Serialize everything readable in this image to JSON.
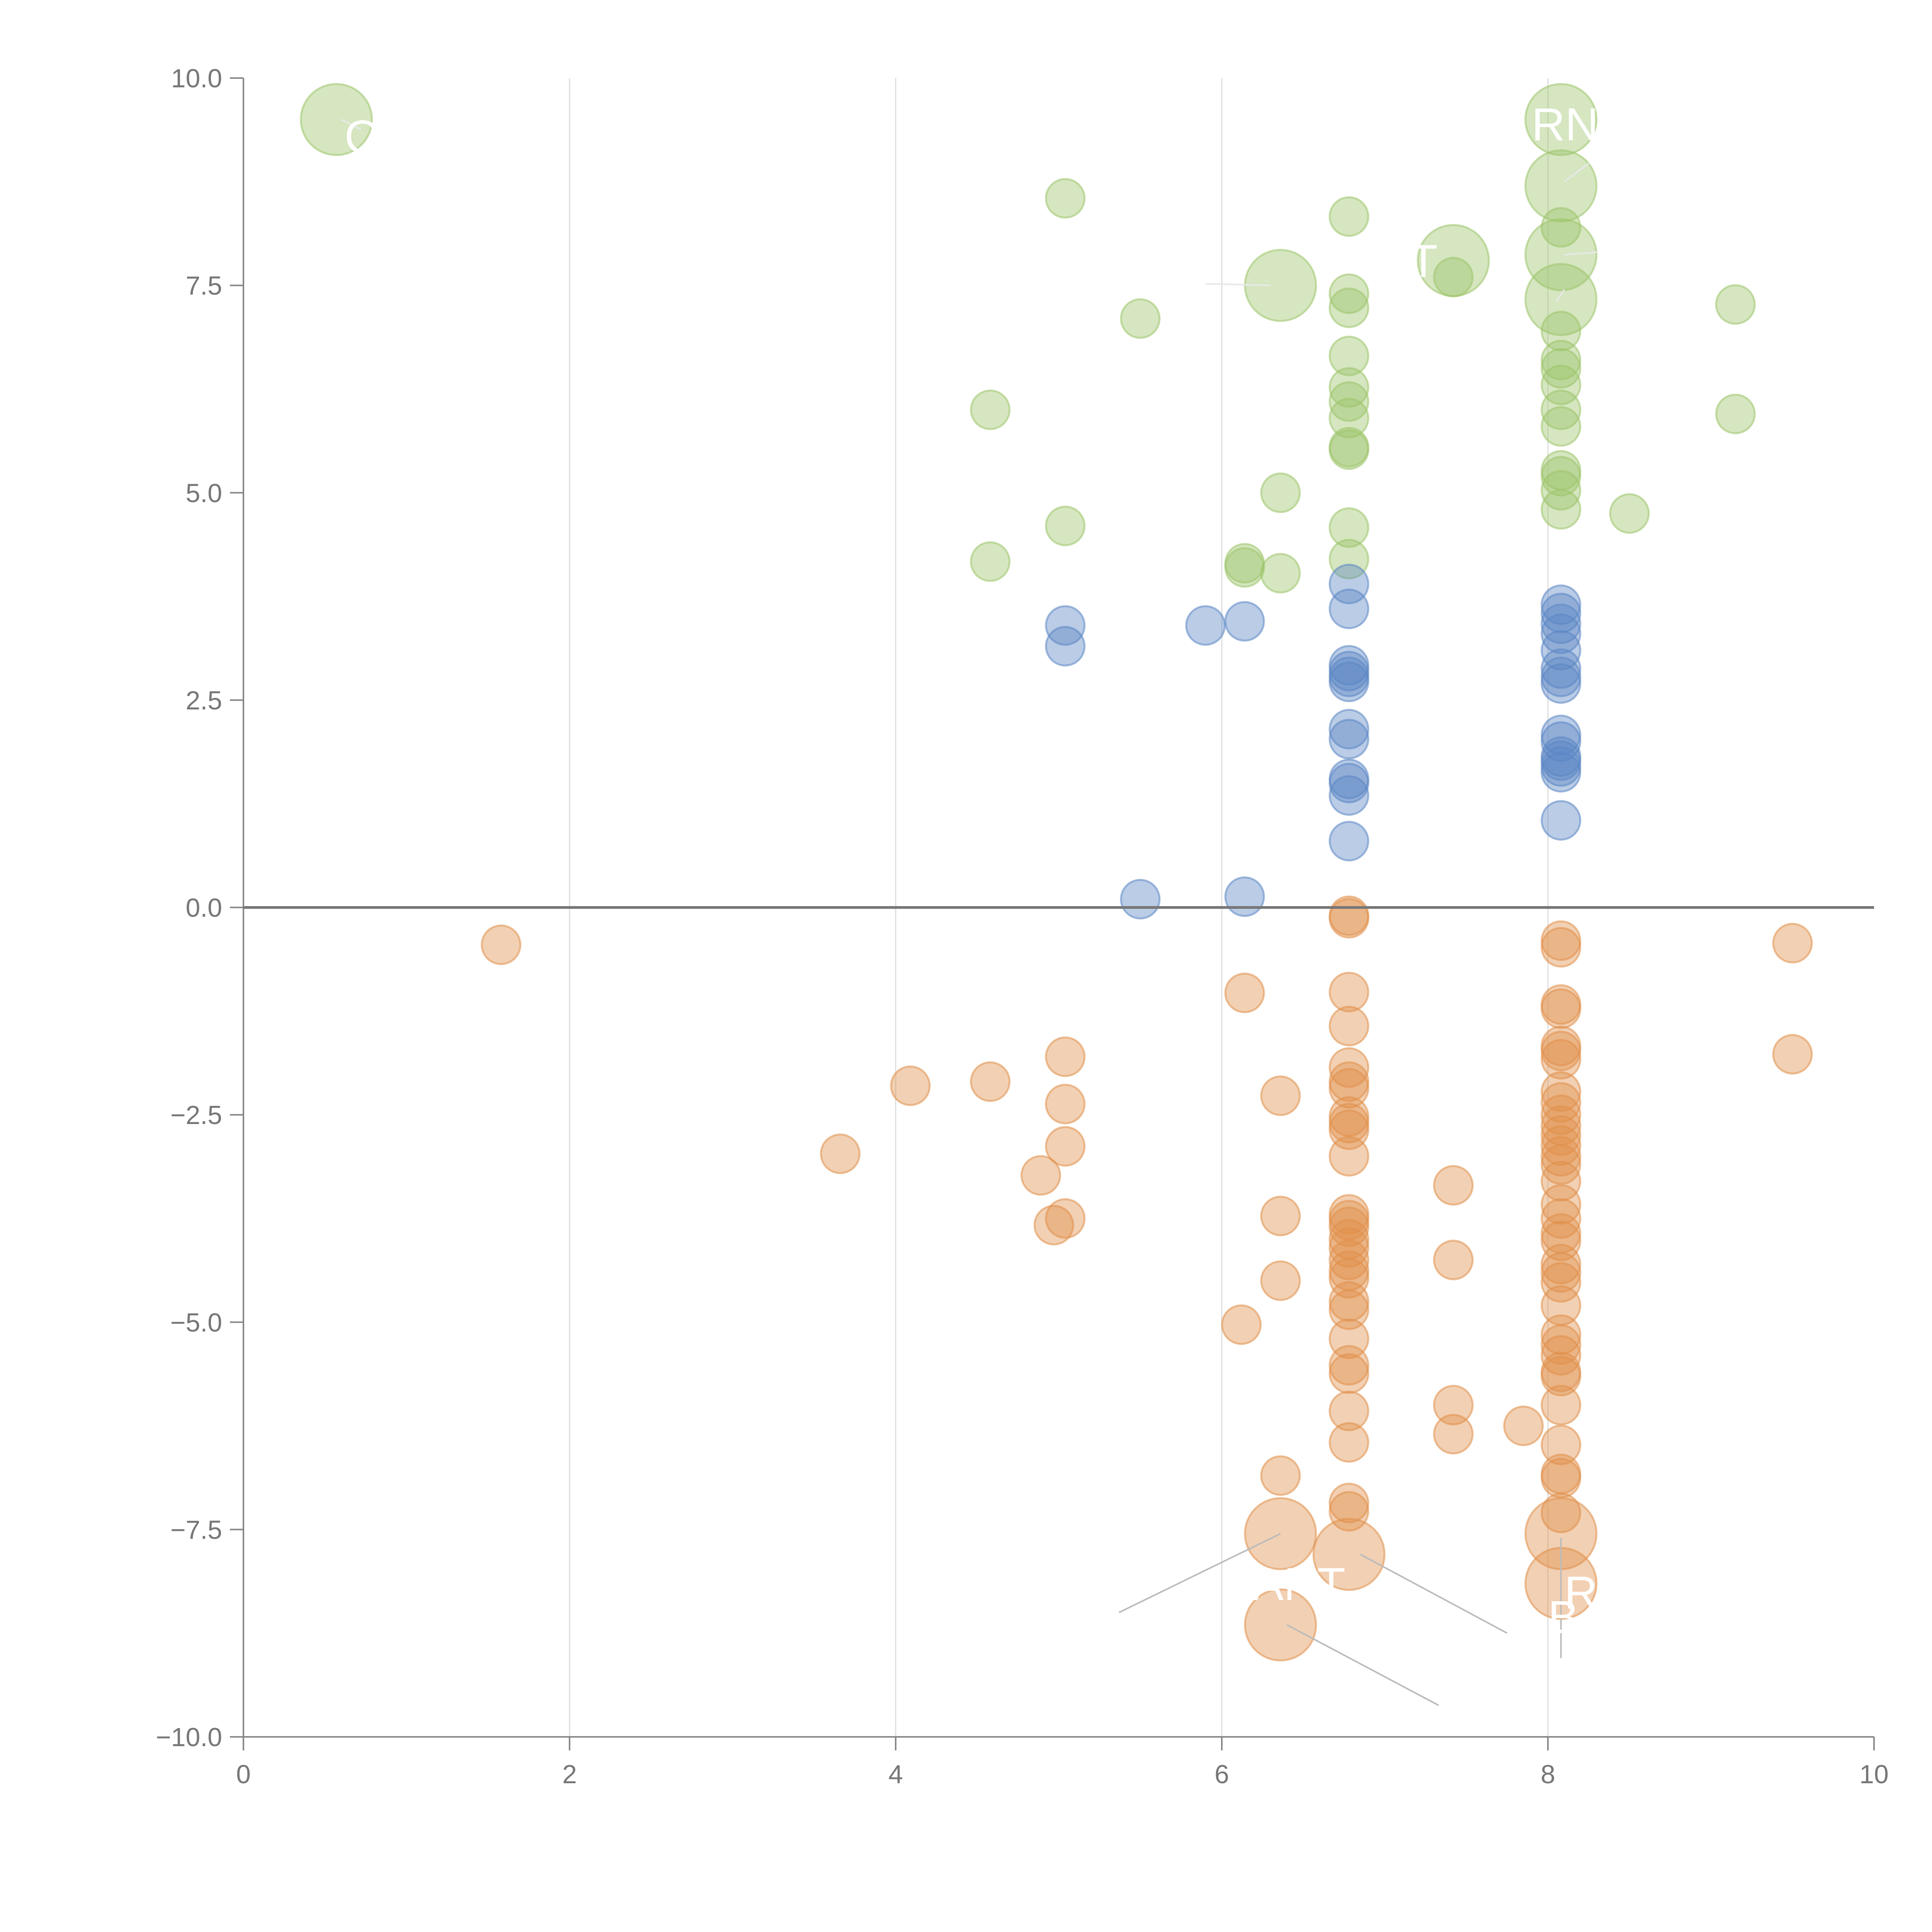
{
  "chart_data": {
    "type": "scatter",
    "title": "",
    "xlabel": "",
    "ylabel": "",
    "xlim": [
      0,
      10
    ],
    "ylim": [
      -10,
      10
    ],
    "x_ticks": [
      "0",
      "2",
      "4",
      "6",
      "8",
      "10"
    ],
    "y_ticks": [
      "10.0",
      "7.5",
      "5.0",
      "2.5",
      "0.0",
      "−2.5",
      "−5.0",
      "−7.5",
      "−10.0"
    ],
    "x_grid": [
      2,
      4,
      6,
      8
    ],
    "colors": {
      "green": "#9cc46a",
      "blue": "#5b86c4",
      "orange": "#e0904a"
    },
    "series": [
      {
        "name": "green",
        "color": "#9cc46a",
        "points": [
          [
            0.57,
            9.5,
            2
          ],
          [
            5.04,
            8.55,
            1
          ],
          [
            5.5,
            7.1,
            1
          ],
          [
            4.58,
            6.0,
            1
          ],
          [
            5.04,
            4.6,
            1
          ],
          [
            4.58,
            4.17,
            1
          ],
          [
            6.14,
            4.15,
            1
          ],
          [
            6.14,
            4.1,
            1
          ],
          [
            6.36,
            4.03,
            1
          ],
          [
            6.36,
            5.0,
            1
          ],
          [
            6.36,
            7.5,
            2
          ],
          [
            6.78,
            8.33,
            1
          ],
          [
            6.78,
            7.4,
            1
          ],
          [
            6.78,
            7.23,
            1
          ],
          [
            6.78,
            6.65,
            1
          ],
          [
            6.78,
            6.27,
            1
          ],
          [
            6.78,
            6.1,
            1
          ],
          [
            6.78,
            5.9,
            1
          ],
          [
            6.78,
            5.55,
            1
          ],
          [
            6.78,
            5.52,
            1
          ],
          [
            6.78,
            4.58,
            1
          ],
          [
            6.78,
            4.2,
            1
          ],
          [
            7.42,
            7.8,
            2
          ],
          [
            7.42,
            7.6,
            1
          ],
          [
            8.08,
            9.5,
            2
          ],
          [
            8.08,
            8.7,
            2
          ],
          [
            8.08,
            8.2,
            1
          ],
          [
            8.08,
            7.87,
            2
          ],
          [
            8.08,
            7.33,
            2
          ],
          [
            8.08,
            6.95,
            1
          ],
          [
            8.08,
            6.6,
            1
          ],
          [
            8.08,
            6.5,
            1
          ],
          [
            8.08,
            6.3,
            1
          ],
          [
            8.08,
            6.0,
            1
          ],
          [
            8.08,
            5.8,
            1
          ],
          [
            8.08,
            5.27,
            1
          ],
          [
            8.08,
            5.2,
            1
          ],
          [
            8.08,
            5.03,
            1
          ],
          [
            8.08,
            4.8,
            1
          ],
          [
            8.5,
            4.75,
            1
          ],
          [
            9.15,
            7.27,
            1
          ],
          [
            9.15,
            5.95,
            1
          ]
        ]
      },
      {
        "name": "blue",
        "color": "#5b86c4",
        "points": [
          [
            5.04,
            3.4,
            1
          ],
          [
            5.04,
            3.15,
            1
          ],
          [
            5.9,
            3.4,
            1
          ],
          [
            6.14,
            3.45,
            1
          ],
          [
            5.5,
            0.1,
            1
          ],
          [
            6.14,
            0.13,
            1
          ],
          [
            6.78,
            3.9,
            1
          ],
          [
            6.78,
            3.6,
            1
          ],
          [
            6.78,
            2.92,
            1
          ],
          [
            6.78,
            2.85,
            1
          ],
          [
            6.78,
            2.78,
            1
          ],
          [
            6.78,
            2.72,
            1
          ],
          [
            6.78,
            2.15,
            1
          ],
          [
            6.78,
            2.03,
            1
          ],
          [
            6.78,
            1.55,
            1
          ],
          [
            6.78,
            1.5,
            1
          ],
          [
            6.78,
            1.35,
            1
          ],
          [
            6.78,
            0.8,
            1
          ],
          [
            8.08,
            3.65,
            1
          ],
          [
            8.08,
            3.55,
            1
          ],
          [
            8.08,
            3.42,
            1
          ],
          [
            8.08,
            3.3,
            1
          ],
          [
            8.08,
            3.1,
            1
          ],
          [
            8.08,
            2.88,
            1
          ],
          [
            8.08,
            2.78,
            1
          ],
          [
            8.08,
            2.7,
            1
          ],
          [
            8.08,
            2.08,
            1
          ],
          [
            8.08,
            2.0,
            1
          ],
          [
            8.08,
            1.82,
            1
          ],
          [
            8.08,
            1.77,
            1
          ],
          [
            8.08,
            1.7,
            1
          ],
          [
            8.08,
            1.63,
            1
          ],
          [
            8.08,
            1.05,
            1
          ]
        ]
      },
      {
        "name": "orange",
        "color": "#e0904a",
        "points": [
          [
            1.58,
            -0.45,
            1
          ],
          [
            3.66,
            -2.97,
            1
          ],
          [
            4.09,
            -2.15,
            1
          ],
          [
            4.58,
            -2.1,
            1
          ],
          [
            4.89,
            -3.23,
            1
          ],
          [
            4.97,
            -3.83,
            1
          ],
          [
            5.04,
            -3.75,
            1
          ],
          [
            5.04,
            -2.37,
            1
          ],
          [
            5.04,
            -2.88,
            1
          ],
          [
            5.04,
            -1.8,
            1
          ],
          [
            6.14,
            -1.03,
            1
          ],
          [
            6.12,
            -5.03,
            1
          ],
          [
            6.36,
            -2.27,
            1
          ],
          [
            6.36,
            -3.72,
            1
          ],
          [
            6.36,
            -4.5,
            1
          ],
          [
            6.36,
            -6.85,
            1
          ],
          [
            6.36,
            -7.55,
            2
          ],
          [
            6.36,
            -8.65,
            2
          ],
          [
            6.78,
            -0.1,
            1
          ],
          [
            6.78,
            -0.13,
            1
          ],
          [
            6.78,
            -1.02,
            1
          ],
          [
            6.78,
            -1.43,
            1
          ],
          [
            6.78,
            -1.93,
            1
          ],
          [
            6.78,
            -2.1,
            1
          ],
          [
            6.78,
            -2.18,
            1
          ],
          [
            6.78,
            -2.52,
            1
          ],
          [
            6.78,
            -2.6,
            1
          ],
          [
            6.78,
            -2.68,
            1
          ],
          [
            6.78,
            -3.0,
            1
          ],
          [
            6.78,
            -3.7,
            1
          ],
          [
            6.78,
            -3.77,
            1
          ],
          [
            6.78,
            -3.85,
            1
          ],
          [
            6.78,
            -4.0,
            1
          ],
          [
            6.78,
            -4.1,
            1
          ],
          [
            6.78,
            -4.25,
            1
          ],
          [
            6.78,
            -4.38,
            1
          ],
          [
            6.78,
            -4.47,
            1
          ],
          [
            6.78,
            -4.75,
            1
          ],
          [
            6.78,
            -4.85,
            1
          ],
          [
            6.78,
            -5.2,
            1
          ],
          [
            6.78,
            -5.52,
            1
          ],
          [
            6.78,
            -5.62,
            1
          ],
          [
            6.78,
            -6.07,
            1
          ],
          [
            6.78,
            -6.45,
            1
          ],
          [
            6.78,
            -7.18,
            1
          ],
          [
            6.78,
            -7.28,
            1
          ],
          [
            6.78,
            -7.8,
            2
          ],
          [
            7.42,
            -3.35,
            1
          ],
          [
            7.42,
            -4.25,
            1
          ],
          [
            7.42,
            -6.0,
            1
          ],
          [
            7.42,
            -6.35,
            1
          ],
          [
            7.85,
            -6.25,
            1
          ],
          [
            8.08,
            -0.4,
            1
          ],
          [
            8.08,
            -0.48,
            1
          ],
          [
            8.08,
            -1.17,
            1
          ],
          [
            8.08,
            -1.22,
            1
          ],
          [
            8.08,
            -1.67,
            1
          ],
          [
            8.08,
            -1.73,
            1
          ],
          [
            8.08,
            -1.83,
            1
          ],
          [
            8.08,
            -2.22,
            1
          ],
          [
            8.08,
            -2.35,
            1
          ],
          [
            8.08,
            -2.5,
            1
          ],
          [
            8.08,
            -2.63,
            1
          ],
          [
            8.08,
            -2.75,
            1
          ],
          [
            8.08,
            -2.87,
            1
          ],
          [
            8.08,
            -3.0,
            1
          ],
          [
            8.08,
            -3.1,
            1
          ],
          [
            8.08,
            -3.3,
            1
          ],
          [
            8.08,
            -3.58,
            1
          ],
          [
            8.08,
            -3.75,
            1
          ],
          [
            8.08,
            -3.93,
            1
          ],
          [
            8.08,
            -4.02,
            1
          ],
          [
            8.08,
            -4.3,
            1
          ],
          [
            8.08,
            -4.4,
            1
          ],
          [
            8.08,
            -4.52,
            1
          ],
          [
            8.08,
            -4.8,
            1
          ],
          [
            8.08,
            -5.15,
            1
          ],
          [
            8.08,
            -5.27,
            1
          ],
          [
            8.08,
            -5.4,
            1
          ],
          [
            8.08,
            -5.6,
            1
          ],
          [
            8.08,
            -5.65,
            1
          ],
          [
            8.08,
            -6.0,
            1
          ],
          [
            8.08,
            -6.48,
            1
          ],
          [
            8.08,
            -6.83,
            1
          ],
          [
            8.08,
            -6.88,
            1
          ],
          [
            8.08,
            -7.3,
            1
          ],
          [
            8.08,
            -7.55,
            2
          ],
          [
            8.08,
            -8.15,
            2
          ],
          [
            9.5,
            -0.43,
            1
          ],
          [
            9.5,
            -1.77,
            1
          ]
        ]
      }
    ],
    "annotations": [
      {
        "text": "O",
        "label_x": 0.62,
        "label_y": 9.1,
        "tip_x": 0.6,
        "tip_y": 9.45
      },
      {
        "text": "RND",
        "label_x": 7.9,
        "label_y": 9.25,
        "tip_x": 8.1,
        "tip_y": 8.75
      },
      {
        "text": "T",
        "label_x": 6.87,
        "label_y": 7.3,
        "tip_x": 7.42,
        "tip_y": 7.8
      },
      {
        "text": "T",
        "label_x": 7.15,
        "label_y": 7.6,
        "tip_x": 8.08,
        "tip_y": 7.9
      },
      {
        "text": "-",
        "label_x": 9.2,
        "label_y": 7.7,
        "tip_x": 8.1,
        "tip_y": 7.4
      },
      {
        "text": "SANT",
        "label_x": 6.0,
        "label_y": -8.35,
        "tip_x": 6.36,
        "tip_y": -7.55
      },
      {
        "text": "R",
        "label_x": 8.1,
        "label_y": -8.45,
        "tip_x": 8.08,
        "tip_y": -8.1
      },
      {
        "text": "B",
        "label_x": 8.0,
        "label_y": -8.75,
        "tip_x": 8.08,
        "tip_y": -7.6
      }
    ]
  }
}
